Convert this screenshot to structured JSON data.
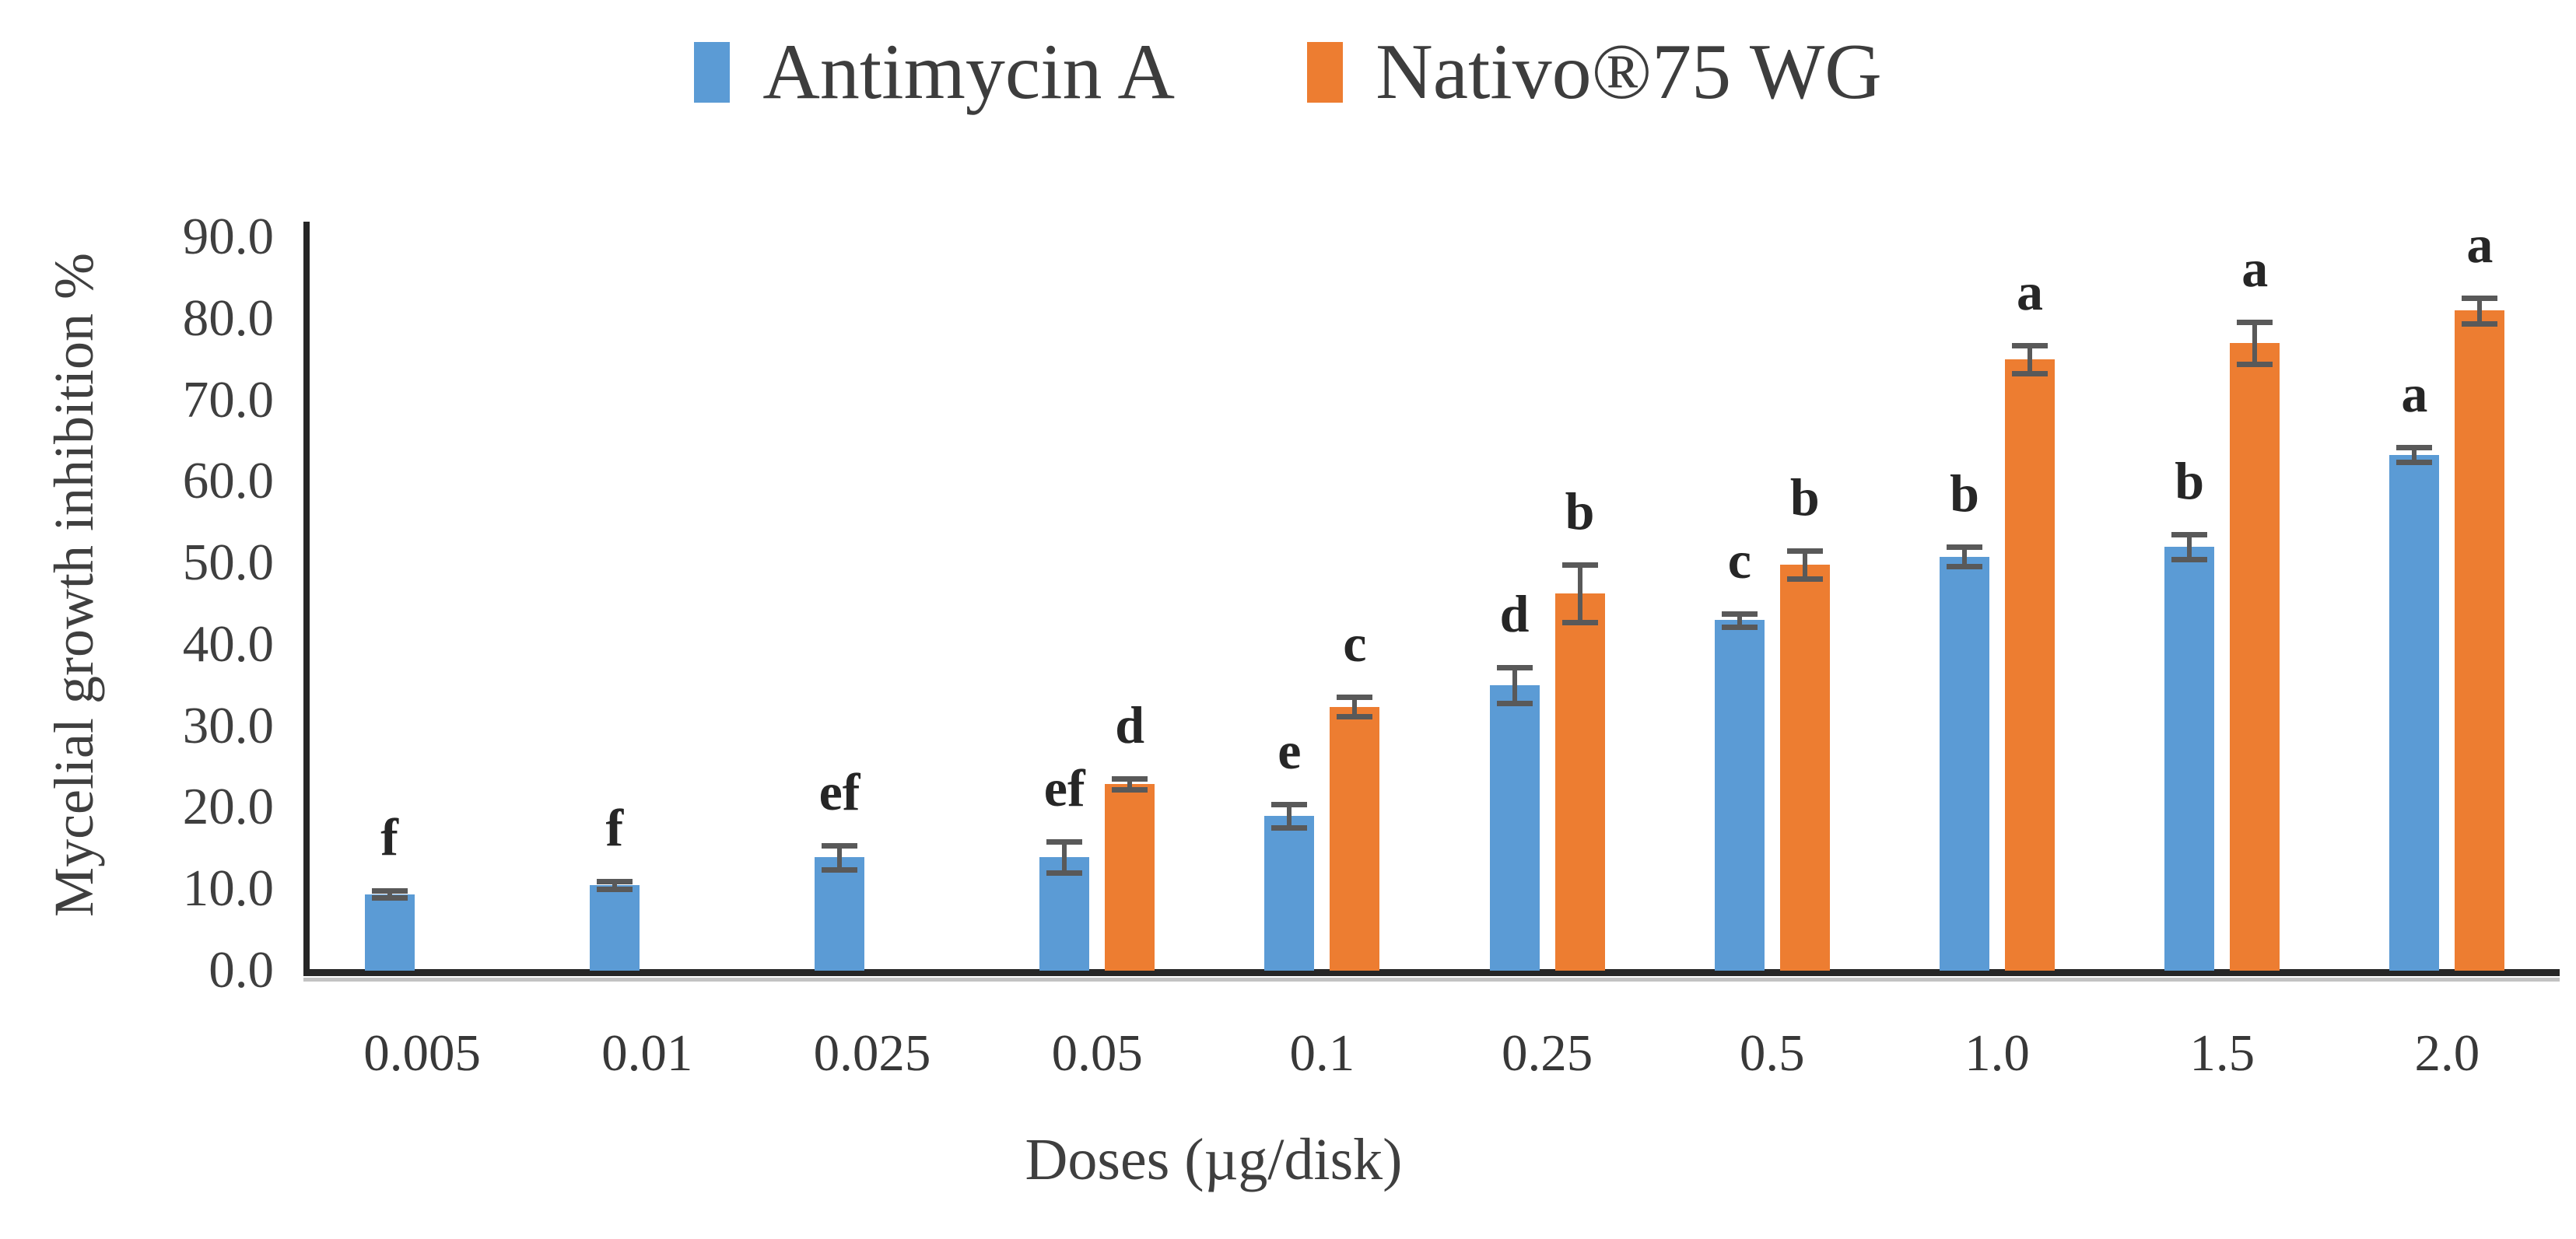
{
  "figure": {
    "background": "#ffffff"
  },
  "legend": {
    "position": "top-center",
    "items": [
      {
        "label": "Antimycin A",
        "color": "#5B9BD5"
      },
      {
        "label": "Nativo®75 WG",
        "color": "#ED7D31"
      }
    ]
  },
  "y_axis": {
    "title": "Mycelial growth inhibition %",
    "tick_labels": [
      "0.0",
      "10.0",
      "20.0",
      "30.0",
      "40.0",
      "50.0",
      "60.0",
      "70.0",
      "80.0",
      "90.0"
    ],
    "min": 0,
    "max": 90,
    "step": 10
  },
  "x_axis": {
    "title": "Doses (µg/disk)",
    "tick_labels": [
      "0.005",
      "0.01",
      "0.025",
      "0.05",
      "0.1",
      "0.25",
      "0.5",
      "1.0",
      "1.5",
      "2.0"
    ]
  },
  "chart_data": {
    "type": "bar",
    "title": "",
    "xlabel": "Doses (µg/disk)",
    "ylabel": "Mycelial growth inhibition %",
    "ylim": [
      0,
      90
    ],
    "grid": false,
    "legend_position": "top-center",
    "categories": [
      "0.005",
      "0.01",
      "0.025",
      "0.05",
      "0.1",
      "0.25",
      "0.5",
      "1.0",
      "1.5",
      "2.0"
    ],
    "series": [
      {
        "name": "Antimycin A",
        "color": "#5B9BD5",
        "values": [
          9.3,
          10.4,
          13.8,
          13.8,
          18.9,
          34.9,
          42.9,
          50.7,
          51.9,
          63.2
        ],
        "errors": [
          0.4,
          0.5,
          1.5,
          1.9,
          1.4,
          2.2,
          0.8,
          1.2,
          1.5,
          0.9
        ],
        "letters": [
          "f",
          "f",
          "ef",
          "ef",
          "e",
          "d",
          "c",
          "b",
          "b",
          "a"
        ]
      },
      {
        "name": "Nativo®75 WG",
        "color": "#ED7D31",
        "values": [
          null,
          null,
          null,
          22.8,
          32.3,
          46.2,
          49.7,
          74.9,
          76.9,
          80.9
        ],
        "errors": [
          null,
          null,
          null,
          0.7,
          1.2,
          3.5,
          1.7,
          1.7,
          2.6,
          1.6
        ],
        "letters": [
          null,
          null,
          null,
          "d",
          "c",
          "b",
          "b",
          "a",
          "a",
          "a"
        ]
      }
    ],
    "error_bar_color": "#595959",
    "axis_color": "#262626",
    "text_color": "#3f3f3f"
  }
}
